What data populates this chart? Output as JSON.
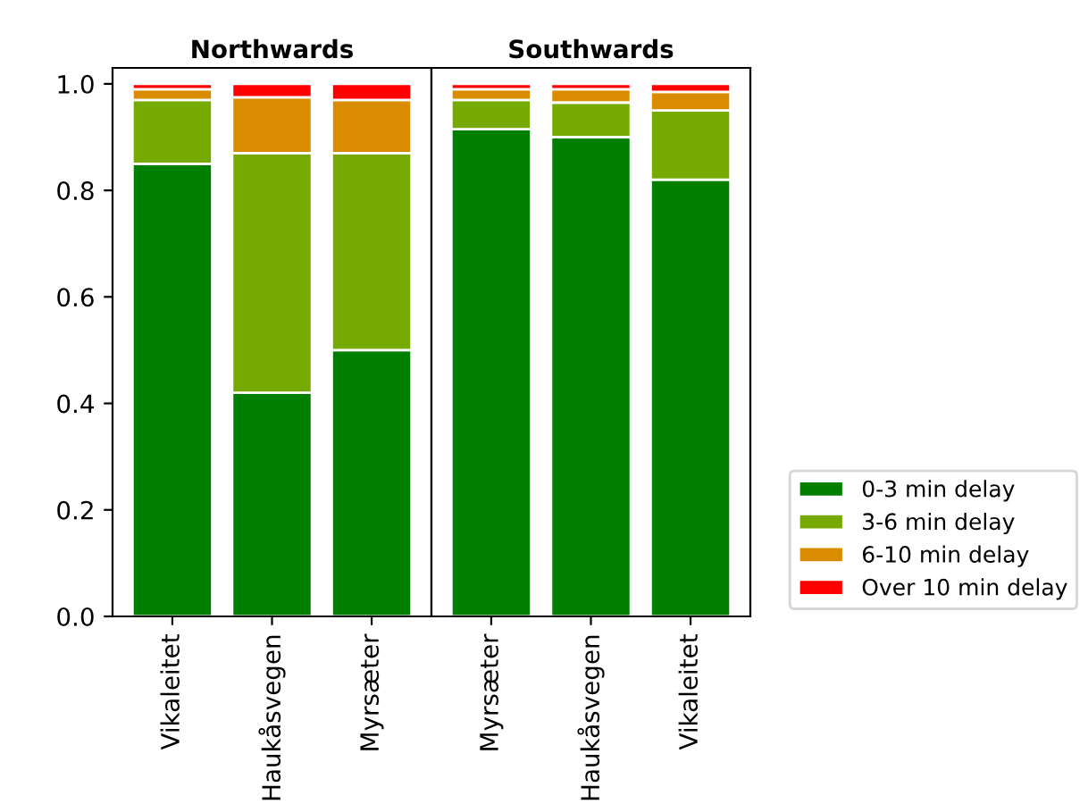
{
  "chart_data": [
    {
      "type": "bar",
      "title": "Northwards",
      "stacked": true,
      "categories": [
        "Vikaleitet",
        "Haukåsvegen",
        "Myrsæter"
      ],
      "ylim": [
        0,
        1.03
      ],
      "legend": "right",
      "yticks": [
        {
          "value": 0,
          "label": "0.0"
        },
        {
          "value": 0.2,
          "label": "0.2"
        },
        {
          "value": 0.4,
          "label": "0.4"
        },
        {
          "value": 0.6,
          "label": "0.6"
        },
        {
          "value": 0.8,
          "label": "0.8"
        },
        {
          "value": 1,
          "label": "1.0"
        }
      ],
      "series": [
        {
          "name": "0-3 min delay",
          "color": "#007f00",
          "values": [
            0.85,
            0.42,
            0.5
          ]
        },
        {
          "name": "3-6 min delay",
          "color": "#77aa00",
          "values": [
            0.12,
            0.45,
            0.37
          ]
        },
        {
          "name": "6-10 min delay",
          "color": "#d98c00",
          "values": [
            0.02,
            0.105,
            0.1
          ]
        },
        {
          "name": "Over 10 min delay",
          "color": "#ff0000",
          "values": [
            0.01,
            0.025,
            0.03
          ]
        }
      ]
    },
    {
      "type": "bar",
      "title": "Southwards",
      "stacked": true,
      "categories": [
        "Myrsæter",
        "Haukåsvegen",
        "Vikaleitet"
      ],
      "ylim": [
        0,
        1.03
      ],
      "tick_labels": "x",
      "series": [
        {
          "color": "#007f00",
          "values": [
            0.915,
            0.9,
            0.82
          ]
        },
        {
          "color": "#77aa00",
          "values": [
            0.055,
            0.065,
            0.13
          ]
        },
        {
          "color": "#d98c00",
          "values": [
            0.02,
            0.025,
            0.035
          ]
        },
        {
          "color": "#ff0000",
          "values": [
            0.01,
            0.01,
            0.015
          ]
        }
      ]
    }
  ]
}
